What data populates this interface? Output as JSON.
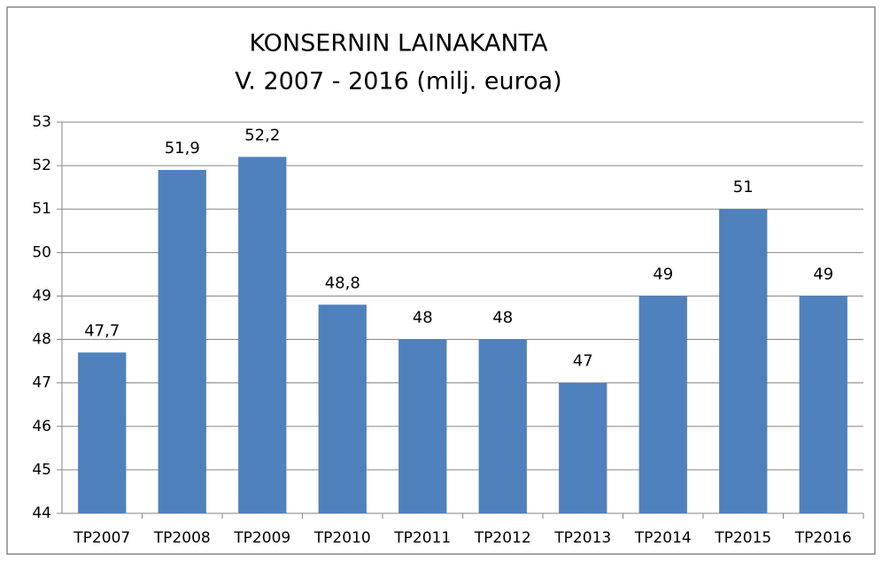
{
  "chart_data": {
    "type": "bar",
    "title": [
      "KONSERNIN LAINAKANTA",
      "V. 2007 - 2016 (milj. euroa)"
    ],
    "categories": [
      "TP2007",
      "TP2008",
      "TP2009",
      "TP2010",
      "TP2011",
      "TP2012",
      "TP2013",
      "TP2014",
      "TP2015",
      "TP2016"
    ],
    "values": [
      47.7,
      51.9,
      52.2,
      48.8,
      48,
      48,
      47,
      49,
      51,
      49
    ],
    "value_labels": [
      "47,7",
      "51,9",
      "52,2",
      "48,8",
      "48",
      "48",
      "47",
      "49",
      "51",
      "49"
    ],
    "color": "#4f81bd",
    "ylim": [
      44,
      53
    ],
    "yticks": [
      44,
      45,
      46,
      47,
      48,
      49,
      50,
      51,
      52,
      53
    ],
    "grid": true
  }
}
